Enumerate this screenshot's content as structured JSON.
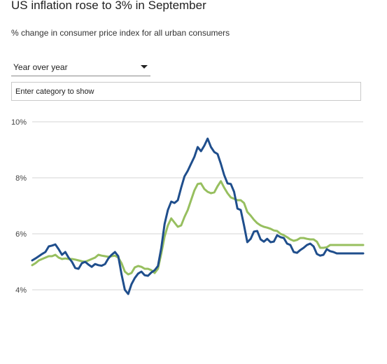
{
  "header": {
    "title": "US inflation rose to 3% in September",
    "subtitle": "% change in consumer price index for all urban consumers"
  },
  "controls": {
    "period_select": {
      "value": "Year over year"
    },
    "category_input": {
      "placeholder": "Enter category to show"
    }
  },
  "colors": {
    "series_dark": "#1f4e8c",
    "series_light": "#97bf5f",
    "grid": "#d6d6d6"
  },
  "chart_data": {
    "type": "line",
    "title": "",
    "xlabel": "",
    "ylabel": "",
    "ylim": [
      4,
      10
    ],
    "yticks": [
      {
        "value": 10,
        "label": "10%"
      },
      {
        "value": 8,
        "label": "8%"
      },
      {
        "value": 6,
        "label": "6%"
      },
      {
        "value": 4,
        "label": "4%"
      }
    ],
    "grid": true,
    "legend": "none",
    "x_axis_labels": "none",
    "x": [
      0,
      1,
      2,
      3,
      4,
      5,
      6,
      7,
      8,
      9,
      10,
      11,
      12,
      13,
      14,
      15,
      16,
      17,
      18,
      19,
      20,
      21,
      22,
      23,
      24,
      25,
      26,
      27,
      28,
      29,
      30,
      31,
      32,
      33,
      34,
      35,
      36,
      37,
      38,
      39,
      40,
      41,
      42,
      43,
      44,
      45,
      46,
      47,
      48,
      49,
      50,
      51,
      52,
      53,
      54,
      55,
      56,
      57,
      58,
      59,
      60,
      61,
      62,
      63,
      64,
      65,
      66,
      67,
      68,
      69,
      70,
      71,
      72,
      73,
      74,
      75,
      76,
      77,
      78,
      79,
      80,
      81,
      82,
      83,
      84,
      85,
      86,
      87,
      88,
      89,
      90,
      91,
      92,
      93,
      94,
      95,
      96,
      97,
      98,
      99,
      100
    ],
    "series": [
      {
        "color_key": "series_dark",
        "values": [
          5.05,
          5.12,
          5.2,
          5.28,
          5.35,
          5.55,
          5.58,
          5.62,
          5.45,
          5.25,
          5.35,
          5.15,
          5.0,
          4.78,
          4.75,
          4.95,
          5.0,
          4.9,
          4.82,
          4.92,
          4.88,
          4.86,
          4.92,
          5.12,
          5.25,
          5.35,
          5.2,
          4.55,
          4.0,
          3.85,
          4.2,
          4.42,
          4.58,
          4.65,
          4.52,
          4.5,
          4.62,
          4.7,
          4.85,
          5.5,
          6.35,
          6.85,
          7.15,
          7.1,
          7.2,
          7.65,
          8.05,
          8.25,
          8.5,
          8.75,
          9.1,
          8.95,
          9.15,
          9.4,
          9.1,
          8.92,
          8.85,
          8.5,
          8.1,
          7.8,
          7.78,
          7.5,
          6.9,
          6.85,
          6.3,
          5.7,
          5.82,
          6.08,
          6.1,
          5.8,
          5.72,
          5.82,
          5.7,
          5.72,
          5.95,
          5.88,
          5.85,
          5.65,
          5.6,
          5.35,
          5.32,
          5.42,
          5.5,
          5.6,
          5.65,
          5.55,
          5.28,
          5.22,
          5.25,
          5.45,
          5.38,
          5.35,
          5.3,
          5.3,
          5.3,
          5.3,
          5.3,
          5.3,
          5.3,
          5.3,
          5.3
        ]
      },
      {
        "color_key": "series_light",
        "values": [
          4.88,
          4.95,
          5.05,
          5.1,
          5.15,
          5.2,
          5.2,
          5.25,
          5.15,
          5.1,
          5.12,
          5.1,
          5.1,
          5.08,
          5.05,
          5.02,
          5.0,
          5.05,
          5.1,
          5.15,
          5.25,
          5.22,
          5.2,
          5.18,
          5.2,
          5.22,
          5.15,
          4.95,
          4.65,
          4.55,
          4.6,
          4.8,
          4.85,
          4.82,
          4.75,
          4.75,
          4.7,
          4.6,
          4.75,
          5.3,
          5.9,
          6.3,
          6.55,
          6.4,
          6.25,
          6.3,
          6.6,
          6.85,
          7.2,
          7.55,
          7.78,
          7.8,
          7.6,
          7.5,
          7.45,
          7.48,
          7.7,
          7.88,
          7.65,
          7.45,
          7.3,
          7.25,
          7.2,
          7.2,
          7.1,
          6.78,
          6.65,
          6.5,
          6.38,
          6.3,
          6.25,
          6.22,
          6.18,
          6.12,
          6.1,
          6.0,
          5.95,
          5.88,
          5.8,
          5.75,
          5.78,
          5.85,
          5.85,
          5.82,
          5.8,
          5.8,
          5.72,
          5.5,
          5.5,
          5.52,
          5.6,
          5.6,
          5.6,
          5.6,
          5.6,
          5.6,
          5.6,
          5.6,
          5.6,
          5.6,
          5.6
        ]
      }
    ]
  }
}
